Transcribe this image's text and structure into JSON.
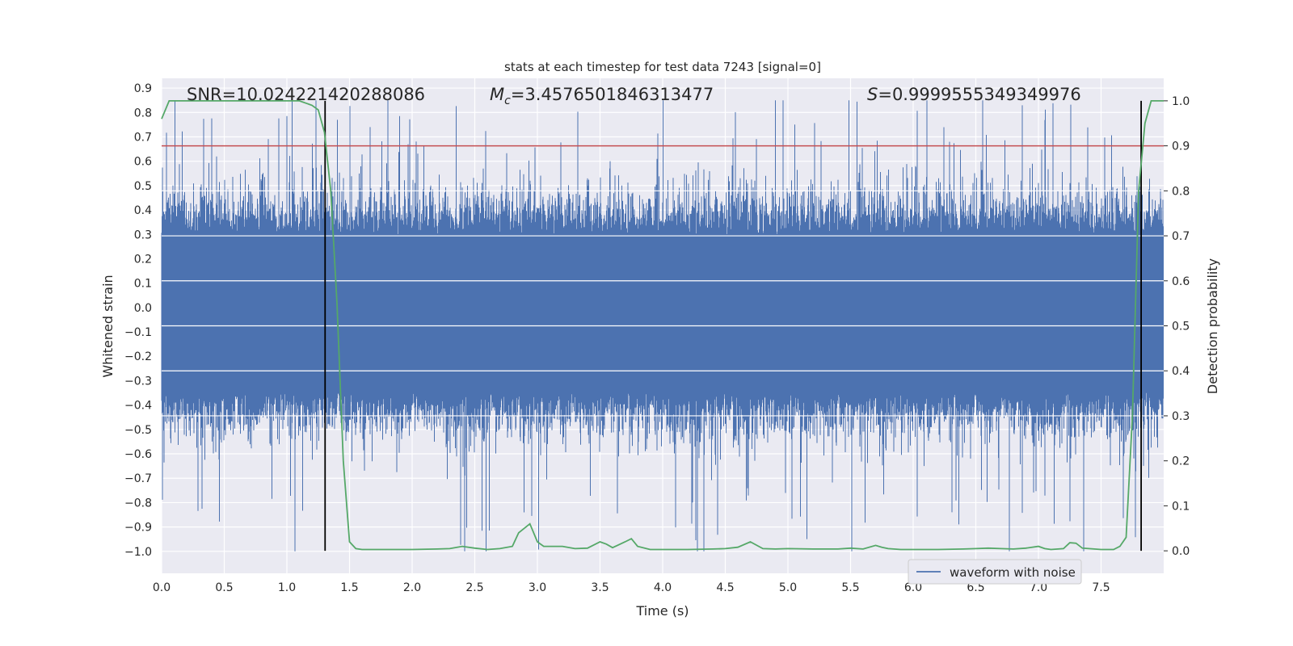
{
  "chart_data": {
    "type": "line",
    "title": "stats at each timestep for test data 7243 [signal=0]",
    "xlabel": "Time (s)",
    "ylabel_left": "Whitened strain",
    "ylabel_right": "Detection probability",
    "xlim": [
      0.0,
      8.0
    ],
    "ylim_left": [
      -1.09,
      0.94
    ],
    "ylim_right": [
      -0.05,
      1.05
    ],
    "xticks": [
      "0.0",
      "0.5",
      "1.0",
      "1.5",
      "2.0",
      "2.5",
      "3.0",
      "3.5",
      "4.0",
      "4.5",
      "5.0",
      "5.5",
      "6.0",
      "6.5",
      "7.0",
      "7.5"
    ],
    "yticks_left": [
      "0.9",
      "0.8",
      "0.7",
      "0.6",
      "0.5",
      "0.4",
      "0.3",
      "0.2",
      "0.1",
      "0.0",
      "−0.1",
      "−0.2",
      "−0.3",
      "−0.4",
      "−0.5",
      "−0.6",
      "−0.7",
      "−0.8",
      "−0.9",
      "−1.0"
    ],
    "yticks_right": [
      "1.0",
      "0.9",
      "0.8",
      "0.7",
      "0.6",
      "0.5",
      "0.4",
      "0.3",
      "0.2",
      "0.1",
      "0.0"
    ],
    "grid": true,
    "legend_position": "bottom-right",
    "annotations": {
      "snr": "SNR=10.024221420288086",
      "mc_symbol": "M",
      "mc_sub": "c",
      "mc_value": "=3.4576501846313477",
      "s_symbol": "S",
      "s_value": "=0.9999555349349976"
    },
    "threshold_prob": 0.9,
    "vlines_time": [
      1.305,
      7.82
    ],
    "colors": {
      "waveform": "#4c72b0",
      "probability": "#55a868",
      "threshold": "#c44e52",
      "vline": "#000000",
      "background": "#eaeaf2",
      "grid": "#ffffff"
    },
    "series": [
      {
        "name": "waveform with noise",
        "kind": "noise-envelope",
        "typical_range": [
          -0.35,
          0.3
        ],
        "peak_range": [
          -1.0,
          0.85
        ]
      },
      {
        "kind": "probability",
        "x": [
          0.0,
          0.06,
          0.2,
          0.5,
          0.8,
          1.1,
          1.2,
          1.25,
          1.3,
          1.35,
          1.4,
          1.45,
          1.5,
          1.55,
          1.6,
          1.8,
          2.0,
          2.2,
          2.3,
          2.4,
          2.5,
          2.6,
          2.7,
          2.8,
          2.85,
          2.94,
          3.0,
          3.05,
          3.2,
          3.3,
          3.4,
          3.5,
          3.55,
          3.6,
          3.7,
          3.75,
          3.8,
          3.9,
          4.0,
          4.2,
          4.4,
          4.5,
          4.6,
          4.7,
          4.8,
          4.9,
          5.0,
          5.2,
          5.4,
          5.5,
          5.6,
          5.7,
          5.75,
          5.8,
          5.9,
          6.0,
          6.2,
          6.4,
          6.5,
          6.6,
          6.7,
          6.8,
          6.9,
          7.0,
          7.05,
          7.1,
          7.2,
          7.25,
          7.3,
          7.35,
          7.5,
          7.6,
          7.65,
          7.7,
          7.75,
          7.8,
          7.85,
          7.9,
          7.95,
          8.0
        ],
        "y": [
          0.96,
          1.0,
          1.0,
          1.0,
          1.0,
          1.0,
          0.99,
          0.98,
          0.93,
          0.8,
          0.55,
          0.2,
          0.02,
          0.005,
          0.003,
          0.003,
          0.003,
          0.004,
          0.005,
          0.01,
          0.006,
          0.003,
          0.005,
          0.01,
          0.04,
          0.06,
          0.02,
          0.01,
          0.01,
          0.005,
          0.006,
          0.02,
          0.015,
          0.007,
          0.02,
          0.027,
          0.01,
          0.003,
          0.003,
          0.003,
          0.004,
          0.005,
          0.008,
          0.02,
          0.005,
          0.004,
          0.005,
          0.004,
          0.004,
          0.006,
          0.004,
          0.012,
          0.008,
          0.005,
          0.003,
          0.003,
          0.003,
          0.004,
          0.005,
          0.006,
          0.005,
          0.004,
          0.006,
          0.01,
          0.005,
          0.003,
          0.005,
          0.018,
          0.017,
          0.006,
          0.003,
          0.003,
          0.01,
          0.03,
          0.3,
          0.8,
          0.95,
          1.0,
          1.0,
          1.0
        ]
      }
    ]
  }
}
